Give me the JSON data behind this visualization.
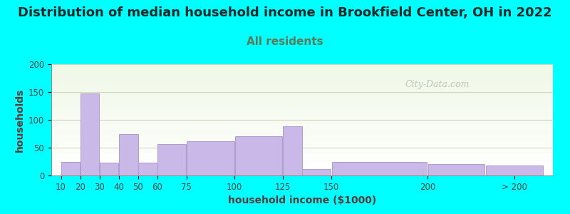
{
  "title": "Distribution of median household income in Brookfield Center, OH in 2022",
  "subtitle": "All residents",
  "xlabel": "household income ($1000)",
  "ylabel": "households",
  "title_fontsize": 13,
  "subtitle_fontsize": 11,
  "label_fontsize": 10,
  "background_color": "#00FFFF",
  "bar_color": "#c9b8e8",
  "bar_edge_color": "#b09ccc",
  "values": [
    25,
    147,
    23,
    75,
    23,
    57,
    62,
    71,
    88,
    12,
    25,
    21,
    18
  ],
  "ylim": [
    0,
    200
  ],
  "yticks": [
    0,
    50,
    100,
    150,
    200
  ],
  "watermark": "City-Data.com",
  "title_color": "#1a2a2a",
  "subtitle_color": "#5a7a5a",
  "axis_label_color": "#5a3a3a",
  "tick_color": "#444444",
  "grid_color": "#d0d8c0",
  "bar_positions": [
    10,
    20,
    30,
    40,
    50,
    60,
    75,
    100,
    125,
    135,
    150,
    200,
    230
  ],
  "bar_widths": [
    10,
    10,
    10,
    10,
    10,
    15,
    25,
    25,
    10,
    15,
    50,
    30,
    30
  ],
  "xtick_positions": [
    10,
    20,
    30,
    40,
    50,
    60,
    75,
    100,
    125,
    150,
    200,
    245
  ],
  "xtick_labels": [
    "10",
    "20",
    "30",
    "40",
    "50",
    "60",
    "75",
    "100",
    "125",
    "150",
    "200",
    "> 200"
  ],
  "xlim": [
    5,
    265
  ]
}
